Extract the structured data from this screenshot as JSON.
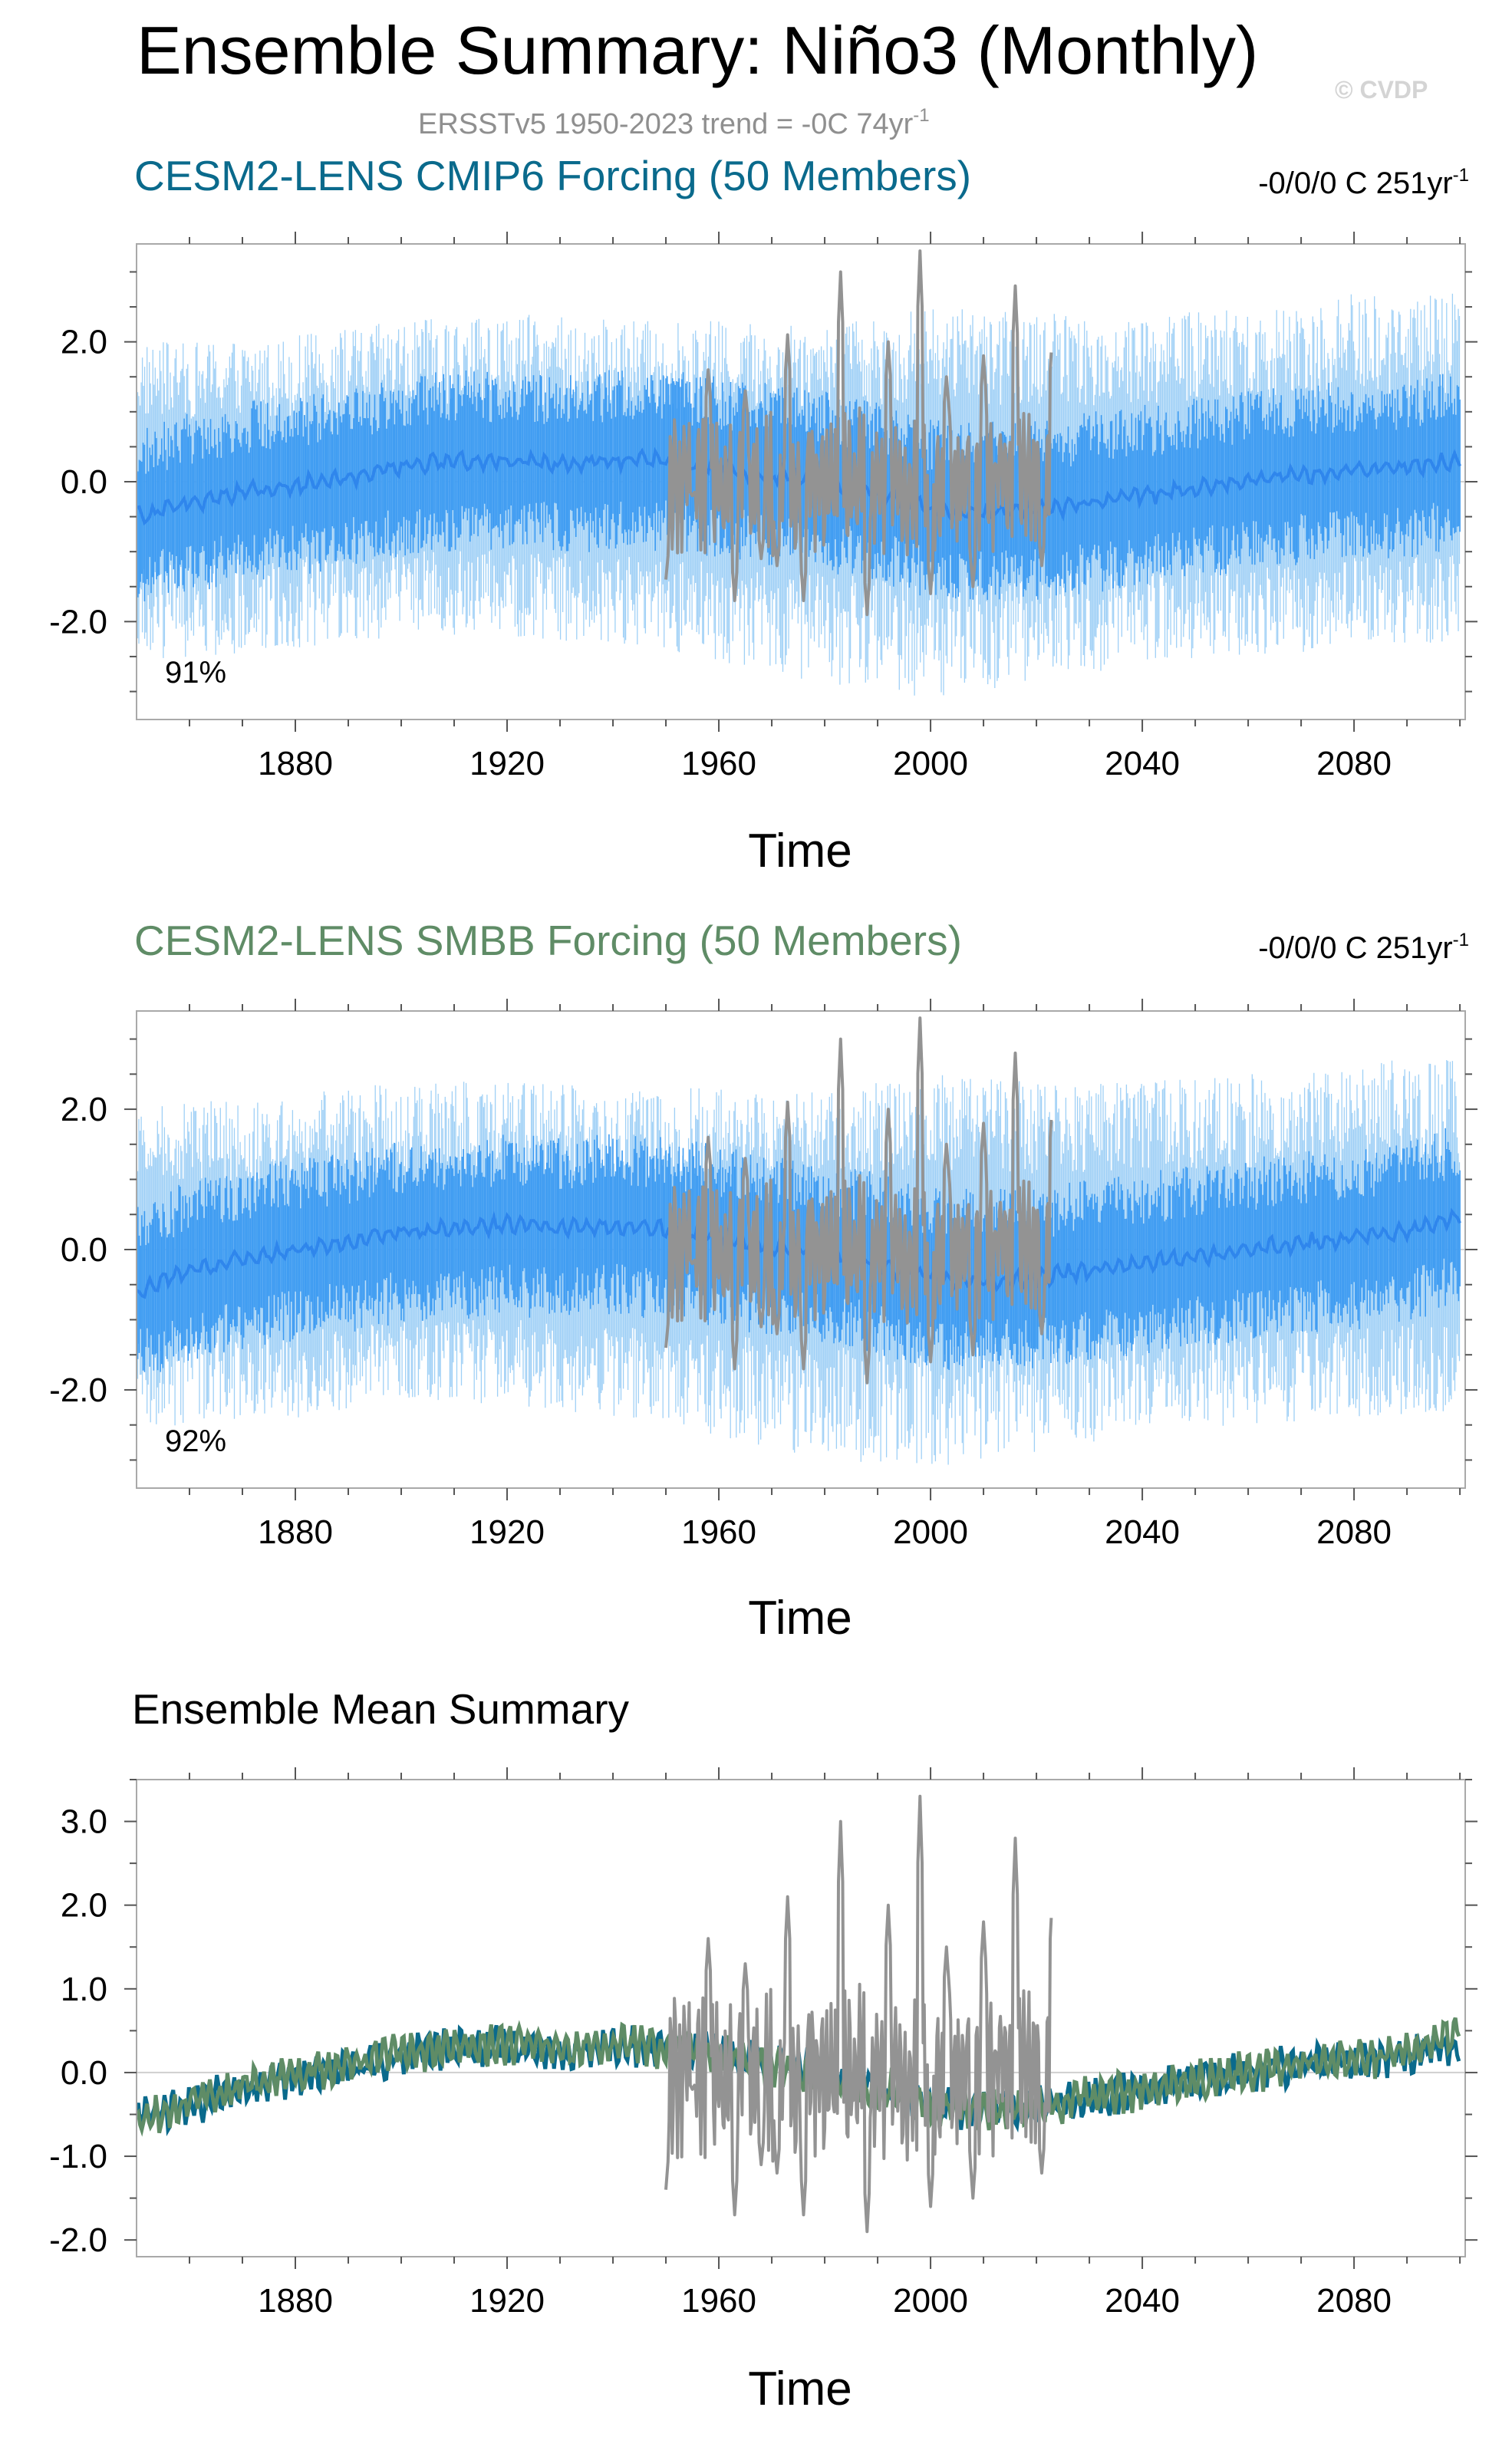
{
  "page": {
    "title": "Ensemble Summary: Niño3 (Monthly)",
    "subtitle_main": "ERSSTv5 1950-2023 trend = -0C 74yr",
    "subtitle_sup": "-1",
    "watermark": "© CVDP"
  },
  "colors": {
    "obs": "#939393",
    "cmip6": "#0a6a8c",
    "smbb": "#5f8c66",
    "spread_outer": "#9fd0f6",
    "spread_inner": "#3d9bf2",
    "ens_mean_blue": "#2f86ec",
    "grid": "#cfcfcf"
  },
  "chart_data": [
    {
      "type": "line",
      "title": "CESM2-LENS CMIP6 Forcing (50 Members)",
      "title_color": "#0a6a8c",
      "trend_label": "-0/0/0 C 251yr",
      "trend_sup": "-1",
      "percent_label": "91%",
      "xlabel": "Time",
      "xlim": [
        1850,
        2101
      ],
      "ylim": [
        -3.4,
        3.4
      ],
      "x_ticks": [
        1880,
        1920,
        1960,
        2000,
        2040,
        2080
      ],
      "x_tick_labels": [
        "1880",
        "1920",
        "1960",
        "2000",
        "2040",
        "2080"
      ],
      "y_ticks": [
        -2.0,
        0.0,
        2.0
      ],
      "y_tick_labels": [
        "-2.0",
        "0.0",
        "2.0"
      ],
      "series": [
        {
          "role": "ensemble_spread",
          "x": [
            1850,
            1860,
            1880,
            1900,
            1920,
            1950,
            1980,
            2000,
            2020,
            2040,
            2060,
            2080,
            2100
          ],
          "min": [
            -2.6,
            -2.5,
            -2.4,
            -2.2,
            -2.2,
            -2.4,
            -2.9,
            -3.1,
            -2.9,
            -2.6,
            -2.5,
            -2.4,
            -2.3
          ],
          "max": [
            2.0,
            2.0,
            2.1,
            2.3,
            2.4,
            2.3,
            2.3,
            2.5,
            2.4,
            2.4,
            2.5,
            2.7,
            2.7
          ]
        },
        {
          "role": "ensemble_mean",
          "x": [
            1850,
            1860,
            1870,
            1880,
            1890,
            1900,
            1910,
            1920,
            1930,
            1940,
            1950,
            1960,
            1970,
            1980,
            1990,
            2000,
            2010,
            2020,
            2030,
            2040,
            2050,
            2060,
            2070,
            2080,
            2090,
            2100
          ],
          "y": [
            -0.5,
            -0.3,
            -0.15,
            -0.05,
            0.05,
            0.2,
            0.3,
            0.3,
            0.25,
            0.3,
            0.3,
            0.2,
            0.1,
            0.0,
            -0.15,
            -0.4,
            -0.45,
            -0.4,
            -0.3,
            -0.2,
            -0.1,
            0.0,
            0.1,
            0.15,
            0.2,
            0.3
          ]
        },
        {
          "role": "observations",
          "x": [
            1950,
            1955,
            1958,
            1963,
            1965,
            1968,
            1971,
            1973,
            1976,
            1983,
            1988,
            1992,
            1998,
            2000,
            2003,
            2008,
            2010,
            2016,
            2021,
            2023
          ],
          "y": [
            -1.4,
            -0.2,
            1.6,
            -1.7,
            1.3,
            -1.1,
            -1.2,
            2.1,
            -1.7,
            3.0,
            -1.9,
            2.0,
            3.3,
            -1.6,
            1.5,
            -1.5,
            1.8,
            2.8,
            -1.2,
            2.1
          ]
        }
      ]
    },
    {
      "type": "line",
      "title": "CESM2-LENS SMBB Forcing (50 Members)",
      "title_color": "#5f8c66",
      "trend_label": "-0/0/0 C 251yr",
      "trend_sup": "-1",
      "percent_label": "92%",
      "xlabel": "Time",
      "xlim": [
        1850,
        2101
      ],
      "ylim": [
        -3.4,
        3.4
      ],
      "x_ticks": [
        1880,
        1920,
        1960,
        2000,
        2040,
        2080
      ],
      "x_tick_labels": [
        "1880",
        "1920",
        "1960",
        "2000",
        "2040",
        "2080"
      ],
      "y_ticks": [
        -2.0,
        0.0,
        2.0
      ],
      "y_tick_labels": [
        "-2.0",
        "0.0",
        "2.0"
      ],
      "series": [
        {
          "role": "ensemble_spread",
          "x": [
            1850,
            1860,
            1880,
            1900,
            1920,
            1950,
            1980,
            2000,
            2020,
            2040,
            2060,
            2080,
            2100
          ],
          "min": [
            -2.6,
            -2.5,
            -2.4,
            -2.2,
            -2.2,
            -2.5,
            -3.0,
            -3.1,
            -2.9,
            -2.6,
            -2.5,
            -2.4,
            -2.3
          ],
          "max": [
            2.0,
            2.1,
            2.2,
            2.4,
            2.4,
            2.3,
            2.3,
            2.5,
            2.4,
            2.4,
            2.5,
            2.7,
            2.7
          ]
        },
        {
          "role": "ensemble_mean",
          "x": [
            1850,
            1860,
            1870,
            1880,
            1890,
            1900,
            1910,
            1920,
            1930,
            1940,
            1950,
            1960,
            1970,
            1980,
            1990,
            2000,
            2010,
            2020,
            2030,
            2040,
            2050,
            2060,
            2070,
            2080,
            2090,
            2100
          ],
          "y": [
            -0.6,
            -0.3,
            -0.15,
            0.0,
            0.1,
            0.25,
            0.3,
            0.35,
            0.3,
            0.35,
            0.3,
            0.2,
            0.05,
            -0.05,
            -0.2,
            -0.4,
            -0.45,
            -0.4,
            -0.3,
            -0.2,
            -0.1,
            0.0,
            0.1,
            0.15,
            0.25,
            0.5
          ]
        },
        {
          "role": "observations",
          "x": [
            1950,
            1955,
            1958,
            1963,
            1965,
            1968,
            1971,
            1973,
            1976,
            1983,
            1988,
            1992,
            1998,
            2000,
            2003,
            2008,
            2010,
            2016,
            2021,
            2023
          ],
          "y": [
            -1.4,
            -0.2,
            1.6,
            -1.7,
            1.3,
            -1.1,
            -1.2,
            2.1,
            -1.7,
            3.0,
            -1.9,
            2.0,
            3.3,
            -1.6,
            1.5,
            -1.5,
            1.8,
            2.8,
            -1.2,
            2.1
          ]
        }
      ]
    },
    {
      "type": "line",
      "title": "Ensemble Mean Summary",
      "title_color": "#000000",
      "xlabel": "Time",
      "xlim": [
        1850,
        2101
      ],
      "ylim": [
        -2.2,
        3.5
      ],
      "x_ticks": [
        1880,
        1920,
        1960,
        2000,
        2040,
        2080
      ],
      "x_tick_labels": [
        "1880",
        "1920",
        "1960",
        "2000",
        "2040",
        "2080"
      ],
      "y_ticks": [
        -2.0,
        -1.0,
        0.0,
        1.0,
        2.0,
        3.0
      ],
      "y_tick_labels": [
        "-2.0",
        "-1.0",
        "0.0",
        "1.0",
        "2.0",
        "3.0"
      ],
      "series": [
        {
          "role": "cmip6_mean",
          "x": [
            1850,
            1860,
            1870,
            1880,
            1890,
            1900,
            1910,
            1920,
            1930,
            1940,
            1950,
            1960,
            1970,
            1980,
            1990,
            2000,
            2010,
            2020,
            2030,
            2040,
            2050,
            2060,
            2070,
            2080,
            2090,
            2100
          ],
          "y": [
            -0.5,
            -0.4,
            -0.2,
            -0.05,
            0.05,
            0.2,
            0.3,
            0.3,
            0.25,
            0.3,
            0.3,
            0.2,
            0.1,
            0.0,
            -0.15,
            -0.4,
            -0.45,
            -0.4,
            -0.3,
            -0.2,
            -0.1,
            0.0,
            0.1,
            0.15,
            0.2,
            0.3
          ]
        },
        {
          "role": "smbb_mean",
          "x": [
            1850,
            1860,
            1870,
            1880,
            1890,
            1900,
            1910,
            1920,
            1930,
            1940,
            1950,
            1960,
            1970,
            1980,
            1990,
            2000,
            2010,
            2020,
            2030,
            2040,
            2050,
            2060,
            2070,
            2080,
            2090,
            2100
          ],
          "y": [
            -0.6,
            -0.35,
            -0.15,
            0.0,
            0.1,
            0.25,
            0.3,
            0.35,
            0.3,
            0.35,
            0.3,
            0.2,
            0.05,
            -0.05,
            -0.2,
            -0.4,
            -0.45,
            -0.4,
            -0.3,
            -0.2,
            -0.1,
            0.0,
            0.1,
            0.15,
            0.25,
            0.5
          ]
        },
        {
          "role": "observations",
          "x": [
            1950,
            1955,
            1958,
            1963,
            1965,
            1968,
            1971,
            1973,
            1976,
            1983,
            1988,
            1992,
            1998,
            2000,
            2003,
            2008,
            2010,
            2016,
            2021,
            2023
          ],
          "y": [
            -1.4,
            -0.2,
            1.6,
            -1.7,
            1.3,
            -1.1,
            -1.2,
            2.1,
            -1.7,
            3.0,
            -1.9,
            2.0,
            3.3,
            -1.6,
            1.5,
            -1.5,
            1.8,
            2.8,
            -1.2,
            2.1
          ]
        }
      ]
    }
  ]
}
